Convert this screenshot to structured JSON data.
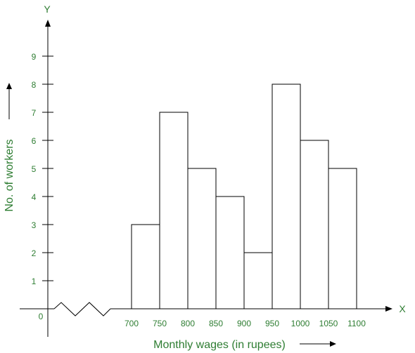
{
  "chart_data": {
    "type": "bar",
    "title": "",
    "xlabel": "Monthly wages (in rupees)",
    "ylabel": "No. of workers",
    "x_axis_letter": "X",
    "y_axis_letter": "Y",
    "origin_label": "0",
    "bins": [
      {
        "start": 700,
        "end": 750,
        "value": 3
      },
      {
        "start": 750,
        "end": 800,
        "value": 7
      },
      {
        "start": 800,
        "end": 850,
        "value": 5
      },
      {
        "start": 850,
        "end": 900,
        "value": 4
      },
      {
        "start": 900,
        "end": 950,
        "value": 2
      },
      {
        "start": 950,
        "end": 1000,
        "value": 8
      },
      {
        "start": 1000,
        "end": 1050,
        "value": 6
      },
      {
        "start": 1050,
        "end": 1100,
        "value": 5
      }
    ],
    "x_ticks": [
      "700",
      "750",
      "800",
      "850",
      "900",
      "950",
      "1000",
      "1050",
      "1100"
    ],
    "y_ticks": [
      "1",
      "2",
      "3",
      "4",
      "5",
      "6",
      "7",
      "8",
      "9"
    ],
    "ylim": [
      0,
      9
    ],
    "x_axis_break": true,
    "grid": false,
    "colors": {
      "bars_stroke": "#000000",
      "bars_fill": "#ffffff",
      "labels": "#2e7d32",
      "axes": "#000000"
    }
  }
}
